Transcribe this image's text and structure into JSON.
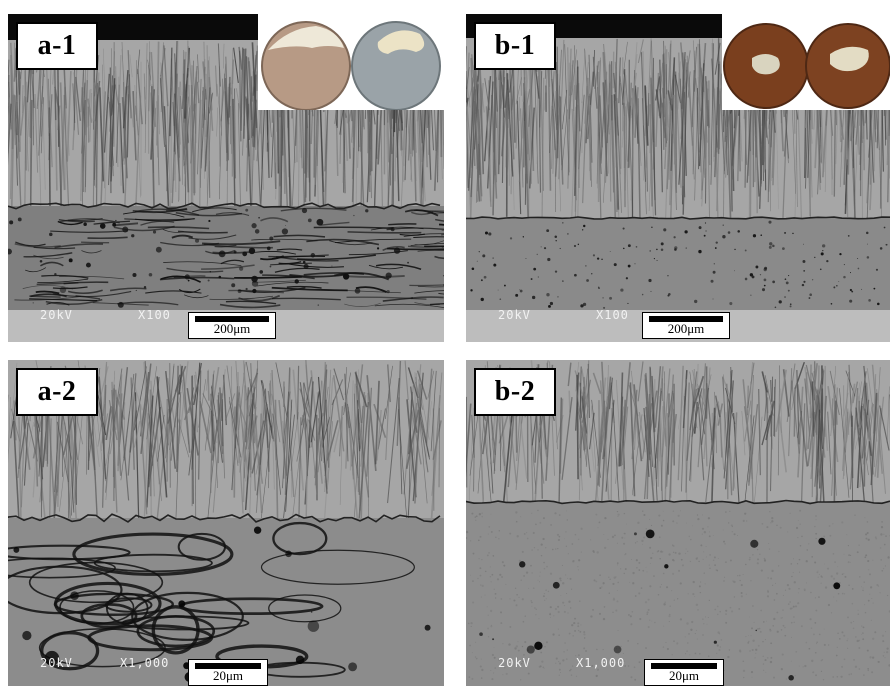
{
  "panels": {
    "a1": {
      "label": "a-1",
      "voltage": "20kV",
      "magnification": "X100",
      "scale": "200μm"
    },
    "b1": {
      "label": "b-1",
      "voltage": "20kV",
      "magnification": "X100",
      "scale": "200μm"
    },
    "a2": {
      "label": "a-2",
      "voltage": "20kV",
      "magnification": "X1,000",
      "scale": "20μm"
    },
    "b2": {
      "label": "b-2",
      "voltage": "20kV",
      "magnification": "X1,000",
      "scale": "20μm"
    }
  },
  "colors": {
    "coating_gray": "#a6a6a6",
    "bondcoat_gray": "#8a8a8a",
    "substrate_gray": "#bdbdbd",
    "crack_dark": "#111111",
    "inset_beige": "#c9b8a2",
    "inset_brown": "#7a3f1e"
  }
}
